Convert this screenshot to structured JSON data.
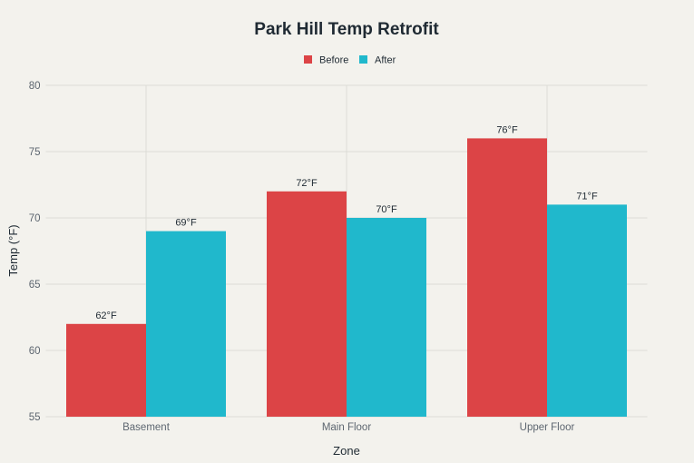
{
  "chart_data": {
    "type": "bar",
    "title": "Park Hill Temp Retrofit",
    "xlabel": "Zone",
    "ylabel": "Temp (°F)",
    "categories": [
      "Basement",
      "Main Floor",
      "Upper Floor"
    ],
    "series": [
      {
        "name": "Before",
        "color": "#dc4446",
        "values": [
          62,
          72,
          76
        ],
        "labels": [
          "62°F",
          "72°F",
          "76°F"
        ]
      },
      {
        "name": "After",
        "color": "#20b8cc",
        "values": [
          69,
          70,
          71
        ],
        "labels": [
          "69°F",
          "70°F",
          "71°F"
        ]
      }
    ],
    "ylim": [
      55,
      80
    ],
    "yticks": [
      "55",
      "60",
      "65",
      "70",
      "75",
      "80"
    ],
    "grid": true,
    "legend": "top-center"
  }
}
